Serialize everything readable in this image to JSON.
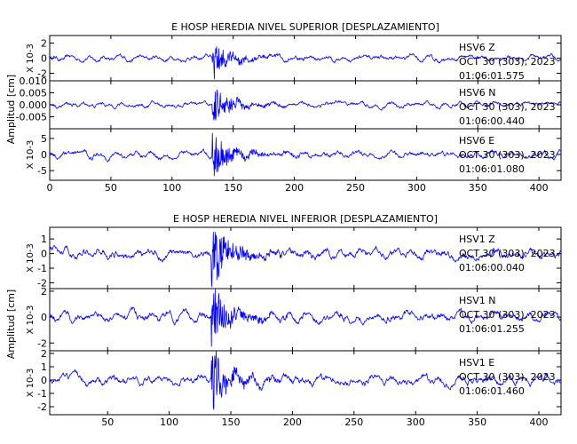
{
  "chart_data": [
    {
      "type": "line",
      "title": "E HOSP HEREDIA NIVEL SUPERIOR [DESPLAZAMIENTO]",
      "ylabel": "Amplitud [cm]",
      "xlim": [
        0,
        418
      ],
      "x_ticks": [
        "0",
        "50",
        "100",
        "150",
        "200",
        "250",
        "300",
        "350",
        "400"
      ],
      "trace_color": "#0000ff",
      "panels": [
        {
          "station": "HSV6",
          "component": "Z",
          "date": "OCT 30 (303), 2023",
          "time": "01:06:01.575",
          "scale_label": "X 10-3",
          "ylim": [
            -3,
            3
          ],
          "y_ticks": [
            "2",
            "0",
            "-2"
          ],
          "y_tick_values": [
            2,
            0,
            -2
          ],
          "peak_amplitude": 2.8,
          "event_onset": 133,
          "event_peak": 135
        },
        {
          "station": "HSV6",
          "component": "N",
          "date": "OCT 30 (303), 2023",
          "time": "01:06:00.440",
          "scale_label": "",
          "ylim": [
            -0.01,
            0.01
          ],
          "y_ticks": [
            "0.010",
            "0.005",
            "0.000",
            "-0.005"
          ],
          "y_tick_values": [
            0.01,
            0.005,
            0.0,
            -0.005
          ],
          "peak_amplitude": 0.008,
          "event_onset": 133,
          "event_peak": 136
        },
        {
          "station": "HSV6",
          "component": "E",
          "date": "OCT 30 (303), 2023",
          "time": "01:06:01.080",
          "scale_label": "X 10-3",
          "ylim": [
            -8,
            8
          ],
          "y_ticks": [
            "5",
            "0",
            "-5"
          ],
          "y_tick_values": [
            5,
            0,
            -5
          ],
          "peak_amplitude": 7.5,
          "event_onset": 133,
          "event_peak": 135
        }
      ]
    },
    {
      "type": "line",
      "title": "E HOSP HEREDIA NIVEL INFERIOR [DESPLAZAMIENTO]",
      "ylabel": "Amplitud [cm]",
      "xlim": [
        3,
        418
      ],
      "x_ticks": [
        "50",
        "100",
        "150",
        "200",
        "250",
        "300",
        "350",
        "400"
      ],
      "trace_color": "#0000ff",
      "panels": [
        {
          "station": "HSV1",
          "component": "Z",
          "date": "OCT 30 (303), 2023",
          "time": "01:06:00.040",
          "scale_label": "X 10-3",
          "ylim": [
            -2.4,
            1.8
          ],
          "y_ticks": [
            "1",
            "0",
            "-1",
            "-2"
          ],
          "y_tick_values": [
            1,
            0,
            -1,
            -2
          ],
          "peak_amplitude": 2.3,
          "event_onset": 134,
          "event_peak": 135
        },
        {
          "station": "HSV1",
          "component": "N",
          "date": "OCT 30 (303), 2023",
          "time": "01:06:01.255",
          "scale_label": "X 10-3",
          "ylim": [
            -2.6,
            2.2
          ],
          "y_ticks": [
            "2",
            "0",
            "-2"
          ],
          "y_tick_values": [
            2,
            0,
            -2
          ],
          "peak_amplitude": 2.5,
          "event_onset": 134,
          "event_peak": 135
        },
        {
          "station": "HSV1",
          "component": "E",
          "date": "OCT 30 (303), 2023",
          "time": "01:06:01.460",
          "scale_label": "X 10-3",
          "ylim": [
            -2.6,
            2.2
          ],
          "y_ticks": [
            "2",
            "1",
            "0",
            "-1",
            "-2"
          ],
          "y_tick_values": [
            2,
            1,
            0,
            -1,
            -2
          ],
          "peak_amplitude": 2.5,
          "event_onset": 134,
          "event_peak": 135
        }
      ]
    }
  ]
}
